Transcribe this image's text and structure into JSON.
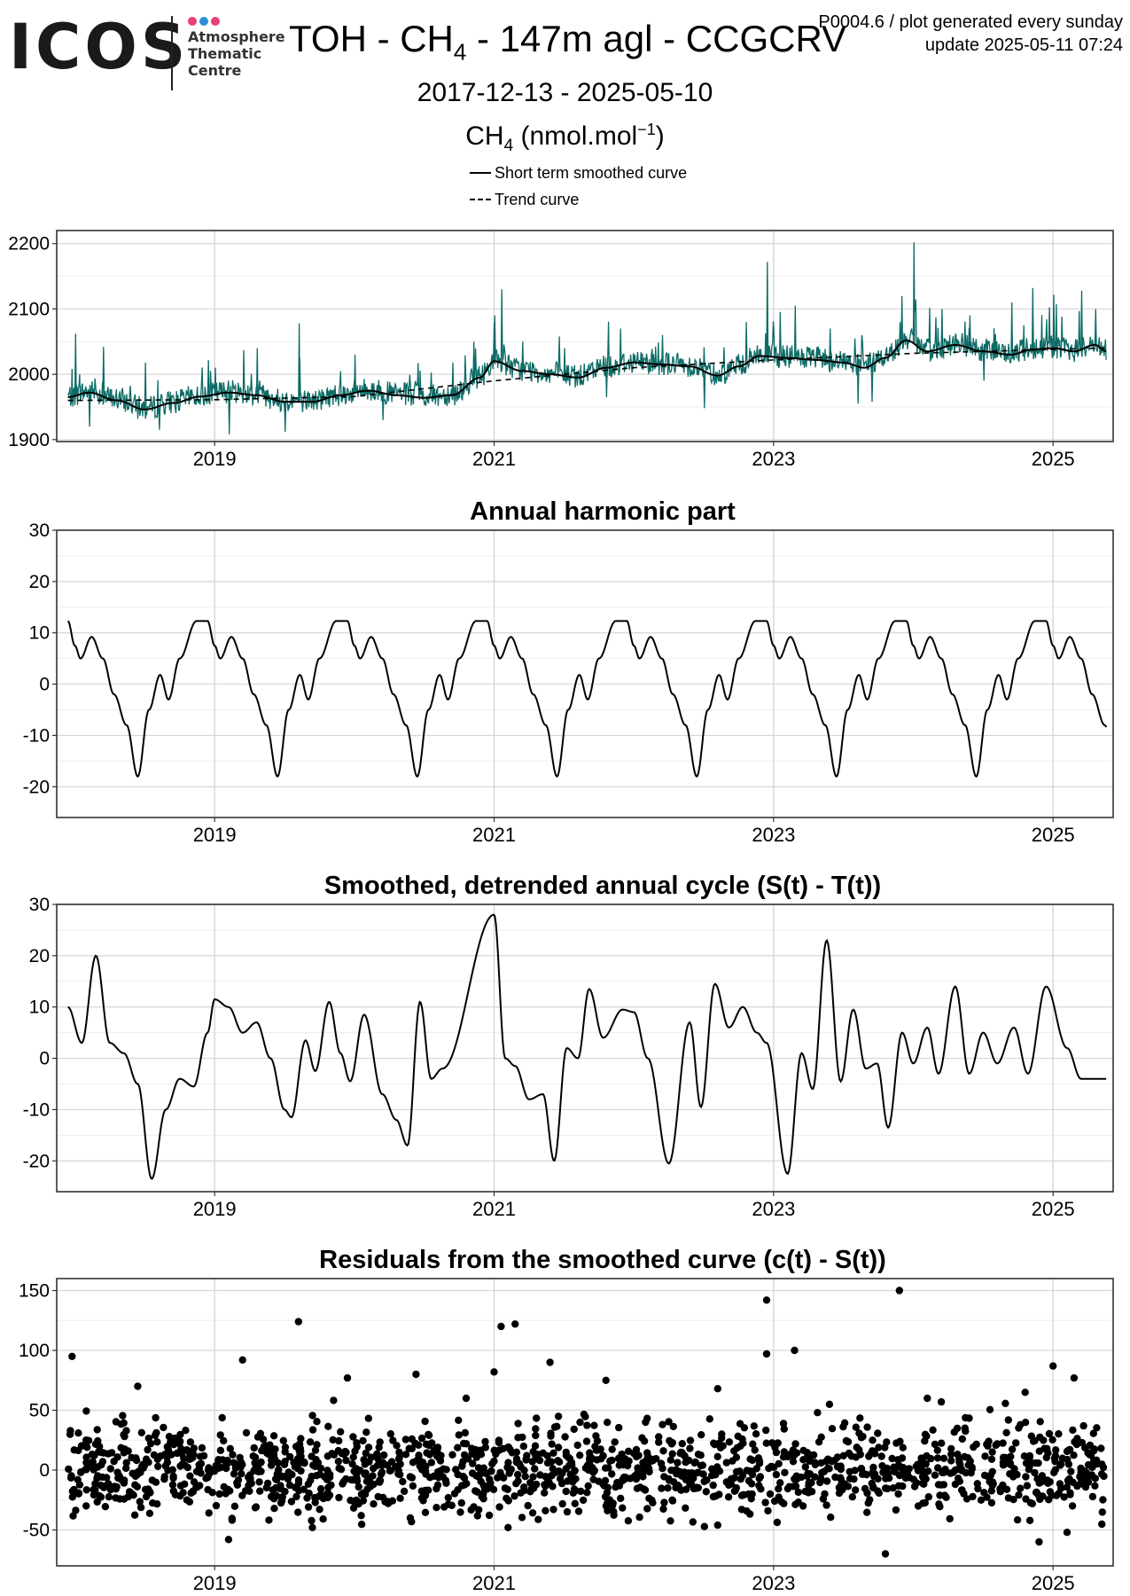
{
  "logo": {
    "brand": "ICOS",
    "subtitle_lines": [
      "Atmosphere",
      "Thematic",
      "Centre"
    ],
    "dot_colors": [
      "#e8407a",
      "#2f8fd8",
      "#e8407a"
    ]
  },
  "header": {
    "title_prefix": "TOH - CH",
    "title_sub": "4",
    "title_suffix": " - 147m agl - CCGCRV",
    "meta_line1": "P0004.6 / plot generated every sunday",
    "meta_line2": "update  2025-05-11 07:24",
    "date_range": "2017-12-13 - 2025-05-10",
    "unit_prefix": "CH",
    "unit_sub": "4",
    "unit_mid": " (nmol.mol",
    "unit_sup": "−1",
    "unit_suffix": ")"
  },
  "legend": {
    "short_term": "Short term smoothed curve",
    "trend": "Trend curve"
  },
  "colors": {
    "data_series": "#0d6b66",
    "smooth": "#000000",
    "grid": "#d6d6d6"
  },
  "chart_data": [
    {
      "type": "line",
      "title": "",
      "x_ticks": [
        2019,
        2021,
        2023,
        2025
      ],
      "y_ticks": [
        1900,
        2000,
        2100,
        2200
      ],
      "xlim": [
        2017.87,
        2025.43
      ],
      "ylim": [
        1897,
        2220
      ],
      "grid": true,
      "series": [
        {
          "name": "CH4",
          "style": "spiky"
        },
        {
          "name": "Short term smoothed curve",
          "style": "solid"
        },
        {
          "name": "Trend curve",
          "style": "dashed"
        }
      ],
      "smooth_points": [
        [
          2017.95,
          1965
        ],
        [
          2018.1,
          1972
        ],
        [
          2018.3,
          1960
        ],
        [
          2018.5,
          1946
        ],
        [
          2018.7,
          1956
        ],
        [
          2018.9,
          1966
        ],
        [
          2019.1,
          1972
        ],
        [
          2019.3,
          1968
        ],
        [
          2019.5,
          1958
        ],
        [
          2019.7,
          1958
        ],
        [
          2019.9,
          1968
        ],
        [
          2020.1,
          1975
        ],
        [
          2020.3,
          1968
        ],
        [
          2020.5,
          1964
        ],
        [
          2020.7,
          1968
        ],
        [
          2020.9,
          1995
        ],
        [
          2021.0,
          2020
        ],
        [
          2021.2,
          2005
        ],
        [
          2021.4,
          2000
        ],
        [
          2021.6,
          1995
        ],
        [
          2021.8,
          2010
        ],
        [
          2022.0,
          2018
        ],
        [
          2022.2,
          2015
        ],
        [
          2022.4,
          2012
        ],
        [
          2022.6,
          1998
        ],
        [
          2022.75,
          2012
        ],
        [
          2022.9,
          2028
        ],
        [
          2023.1,
          2025
        ],
        [
          2023.3,
          2022
        ],
        [
          2023.5,
          2018
        ],
        [
          2023.65,
          2010
        ],
        [
          2023.8,
          2025
        ],
        [
          2023.95,
          2052
        ],
        [
          2024.1,
          2035
        ],
        [
          2024.3,
          2045
        ],
        [
          2024.5,
          2035
        ],
        [
          2024.7,
          2030
        ],
        [
          2024.85,
          2038
        ],
        [
          2025.0,
          2040
        ],
        [
          2025.15,
          2035
        ],
        [
          2025.3,
          2045
        ],
        [
          2025.38,
          2035
        ]
      ],
      "trend_points": [
        [
          2017.95,
          1960
        ],
        [
          2019.0,
          1961
        ],
        [
          2020.0,
          1966
        ],
        [
          2021.0,
          1990
        ],
        [
          2022.0,
          2010
        ],
        [
          2023.0,
          2022
        ],
        [
          2024.0,
          2032
        ],
        [
          2025.0,
          2038
        ],
        [
          2025.38,
          2040
        ]
      ],
      "spikes": [
        [
          2018.0,
          2062
        ],
        [
          2018.2,
          2042
        ],
        [
          2018.5,
          2018
        ],
        [
          2019.0,
          2010
        ],
        [
          2019.3,
          2040
        ],
        [
          2019.6,
          2078
        ],
        [
          2020.0,
          2030
        ],
        [
          2020.7,
          2018
        ],
        [
          2020.85,
          2050
        ],
        [
          2021.0,
          2090
        ],
        [
          2021.05,
          2130
        ],
        [
          2021.2,
          2050
        ],
        [
          2021.5,
          2040
        ],
        [
          2021.9,
          2070
        ],
        [
          2022.2,
          2060
        ],
        [
          2022.8,
          2080
        ],
        [
          2022.95,
          2172
        ],
        [
          2023.15,
          2105
        ],
        [
          2023.4,
          2070
        ],
        [
          2023.9,
          2080
        ],
        [
          2024.0,
          2202
        ],
        [
          2024.2,
          2100
        ],
        [
          2024.4,
          2090
        ],
        [
          2024.7,
          2110
        ],
        [
          2024.85,
          2132
        ],
        [
          2025.0,
          2122
        ],
        [
          2025.2,
          2128
        ],
        [
          2025.3,
          2100
        ]
      ],
      "dips": [
        [
          2018.1,
          1920
        ],
        [
          2018.6,
          1915
        ],
        [
          2019.1,
          1908
        ],
        [
          2019.5,
          1912
        ],
        [
          2020.2,
          1930
        ],
        [
          2021.8,
          1965
        ],
        [
          2022.5,
          1948
        ],
        [
          2023.6,
          1955
        ],
        [
          2023.7,
          1958
        ],
        [
          2024.5,
          1990
        ]
      ]
    },
    {
      "type": "line",
      "title": "Annual harmonic part",
      "x_ticks": [
        2019,
        2021,
        2023,
        2025
      ],
      "y_ticks": [
        -20,
        -10,
        0,
        10,
        20,
        30
      ],
      "xlim": [
        2017.87,
        2025.43
      ],
      "ylim": [
        -26,
        30
      ],
      "grid": true,
      "cycle_points": [
        [
          0.0,
          12.3
        ],
        [
          0.05,
          7.5
        ],
        [
          0.09,
          5
        ],
        [
          0.17,
          9.2
        ],
        [
          0.25,
          5
        ],
        [
          0.33,
          -2
        ],
        [
          0.42,
          -8
        ],
        [
          0.5,
          -18
        ],
        [
          0.58,
          -5
        ],
        [
          0.66,
          1.8
        ],
        [
          0.72,
          -3
        ],
        [
          0.8,
          5
        ],
        [
          0.92,
          12.3
        ]
      ],
      "start_x": 2017.95,
      "end_x": 2025.38
    },
    {
      "type": "line",
      "title": "Smoothed, detrended annual cycle (S(t) - T(t))",
      "x_ticks": [
        2019,
        2021,
        2023,
        2025
      ],
      "y_ticks": [
        -20,
        -10,
        0,
        10,
        20,
        30
      ],
      "xlim": [
        2017.87,
        2025.43
      ],
      "ylim": [
        -26,
        30
      ],
      "grid": true,
      "points": [
        [
          2017.95,
          10
        ],
        [
          2018.05,
          3
        ],
        [
          2018.15,
          20
        ],
        [
          2018.25,
          3
        ],
        [
          2018.35,
          1
        ],
        [
          2018.45,
          -5
        ],
        [
          2018.55,
          -23.5
        ],
        [
          2018.65,
          -10
        ],
        [
          2018.75,
          -4
        ],
        [
          2018.85,
          -5.5
        ],
        [
          2018.95,
          5
        ],
        [
          2019.0,
          11.5
        ],
        [
          2019.1,
          10
        ],
        [
          2019.2,
          5
        ],
        [
          2019.3,
          7
        ],
        [
          2019.4,
          0
        ],
        [
          2019.5,
          -10
        ],
        [
          2019.55,
          -11.5
        ],
        [
          2019.65,
          3.5
        ],
        [
          2019.72,
          -2.5
        ],
        [
          2019.82,
          11
        ],
        [
          2019.9,
          1
        ],
        [
          2019.97,
          -4.5
        ],
        [
          2020.07,
          8.5
        ],
        [
          2020.2,
          -7
        ],
        [
          2020.3,
          -12
        ],
        [
          2020.38,
          -17
        ],
        [
          2020.47,
          11
        ],
        [
          2020.55,
          -4
        ],
        [
          2020.63,
          -2
        ],
        [
          2021.0,
          28
        ],
        [
          2021.08,
          0
        ],
        [
          2021.15,
          -1.5
        ],
        [
          2021.25,
          -8
        ],
        [
          2021.35,
          -7
        ],
        [
          2021.43,
          -20
        ],
        [
          2021.52,
          2
        ],
        [
          2021.6,
          0
        ],
        [
          2021.68,
          13.5
        ],
        [
          2021.78,
          4
        ],
        [
          2021.92,
          9.5
        ],
        [
          2022.0,
          9
        ],
        [
          2022.1,
          0
        ],
        [
          2022.25,
          -20.5
        ],
        [
          2022.4,
          7
        ],
        [
          2022.48,
          -9.5
        ],
        [
          2022.58,
          14.5
        ],
        [
          2022.68,
          6
        ],
        [
          2022.78,
          10
        ],
        [
          2022.88,
          5
        ],
        [
          2022.95,
          3
        ],
        [
          2023.1,
          -22.5
        ],
        [
          2023.2,
          1
        ],
        [
          2023.28,
          -6
        ],
        [
          2023.38,
          23
        ],
        [
          2023.48,
          -4.5
        ],
        [
          2023.57,
          9.5
        ],
        [
          2023.66,
          -2
        ],
        [
          2023.74,
          -1
        ],
        [
          2023.82,
          -13.5
        ],
        [
          2023.92,
          5
        ],
        [
          2024.0,
          -1
        ],
        [
          2024.1,
          6
        ],
        [
          2024.18,
          -3
        ],
        [
          2024.3,
          14
        ],
        [
          2024.4,
          -3
        ],
        [
          2025.38,
          -4
        ]
      ]
    },
    {
      "type": "scatter",
      "title": "Residuals from the smoothed curve (c(t) - S(t))",
      "x_ticks": [
        2019,
        2021,
        2023,
        2025
      ],
      "y_ticks": [
        -50,
        0,
        50,
        100,
        150
      ],
      "xlim": [
        2017.87,
        2025.43
      ],
      "ylim": [
        -80,
        160
      ],
      "grid": true,
      "outliers": [
        [
          2017.98,
          95
        ],
        [
          2018.45,
          70
        ],
        [
          2019.2,
          92
        ],
        [
          2019.6,
          124
        ],
        [
          2019.95,
          77
        ],
        [
          2020.8,
          60
        ],
        [
          2021.0,
          82
        ],
        [
          2021.05,
          120
        ],
        [
          2021.15,
          122
        ],
        [
          2021.4,
          90
        ],
        [
          2021.8,
          75
        ],
        [
          2022.6,
          68
        ],
        [
          2022.95,
          142
        ],
        [
          2022.95,
          97
        ],
        [
          2023.15,
          100
        ],
        [
          2023.4,
          55
        ],
        [
          2023.9,
          150
        ],
        [
          2024.1,
          60
        ],
        [
          2024.2,
          57
        ],
        [
          2024.8,
          65
        ],
        [
          2025.0,
          87
        ],
        [
          2025.15,
          77
        ],
        [
          2024.9,
          -60
        ],
        [
          2023.8,
          -70
        ],
        [
          2025.1,
          -52
        ],
        [
          2019.1,
          -58
        ],
        [
          2019.7,
          -48
        ],
        [
          2020.4,
          -40
        ],
        [
          2021.1,
          -48
        ],
        [
          2022.6,
          -46
        ]
      ]
    }
  ]
}
